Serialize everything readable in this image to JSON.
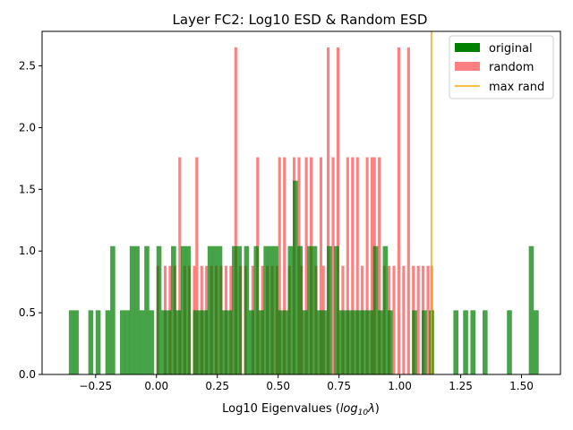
{
  "chart_data": {
    "type": "bar",
    "title": "Layer  FC2: Log10 ESD & Random ESD",
    "xlabel_prefix": "Log10 Eigenvalues (",
    "xlabel_math": "log",
    "xlabel_sub": "10",
    "xlabel_lambda": "λ",
    "xlabel_suffix": ")",
    "xlim": [
      -0.47,
      1.66
    ],
    "ylim": [
      0,
      2.78
    ],
    "xticks": [
      -0.25,
      0.0,
      0.25,
      0.5,
      0.75,
      1.0,
      1.25,
      1.5
    ],
    "xtick_labels": [
      "−0.25",
      "0.00",
      "0.25",
      "0.50",
      "0.75",
      "1.00",
      "1.25",
      "1.50"
    ],
    "yticks": [
      0.0,
      0.5,
      1.0,
      1.5,
      2.0,
      2.5
    ],
    "ytick_labels": [
      "0.0",
      "0.5",
      "1.0",
      "1.5",
      "2.0",
      "2.5"
    ],
    "grid": false,
    "legend_position": "top-right",
    "legend": [
      {
        "label": "original",
        "kind": "patch",
        "color": "#008000"
      },
      {
        "label": "random",
        "kind": "patch",
        "color": "#ff8080"
      },
      {
        "label": "max rand",
        "kind": "line",
        "color": "#ffa500"
      }
    ],
    "series": [
      {
        "name": "random",
        "color": "#ff8080",
        "opacity": 1.0,
        "bin_width": 0.0115,
        "bars": [
          [
            0.0,
            0.88
          ],
          [
            0.03,
            0.88
          ],
          [
            0.05,
            0.88
          ],
          [
            0.07,
            0.88
          ],
          [
            0.09,
            1.76
          ],
          [
            0.11,
            0.88
          ],
          [
            0.13,
            0.88
          ],
          [
            0.15,
            0.88
          ],
          [
            0.16,
            1.76
          ],
          [
            0.18,
            0.88
          ],
          [
            0.2,
            0.88
          ],
          [
            0.22,
            0.88
          ],
          [
            0.24,
            0.88
          ],
          [
            0.26,
            0.88
          ],
          [
            0.28,
            0.88
          ],
          [
            0.3,
            0.88
          ],
          [
            0.32,
            2.65
          ],
          [
            0.34,
            0.88
          ],
          [
            0.36,
            0.88
          ],
          [
            0.39,
            0.88
          ],
          [
            0.41,
            1.76
          ],
          [
            0.43,
            0.88
          ],
          [
            0.45,
            0.88
          ],
          [
            0.47,
            0.88
          ],
          [
            0.49,
            0.88
          ],
          [
            0.5,
            1.76
          ],
          [
            0.52,
            1.76
          ],
          [
            0.54,
            0.88
          ],
          [
            0.56,
            1.76
          ],
          [
            0.58,
            1.76
          ],
          [
            0.59,
            0.88
          ],
          [
            0.61,
            1.76
          ],
          [
            0.63,
            1.76
          ],
          [
            0.65,
            0.88
          ],
          [
            0.67,
            1.76
          ],
          [
            0.68,
            0.88
          ],
          [
            0.7,
            2.65
          ],
          [
            0.72,
            1.76
          ],
          [
            0.74,
            2.65
          ],
          [
            0.76,
            0.88
          ],
          [
            0.78,
            1.76
          ],
          [
            0.8,
            1.76
          ],
          [
            0.82,
            1.76
          ],
          [
            0.84,
            0.88
          ],
          [
            0.86,
            1.76
          ],
          [
            0.88,
            1.76
          ],
          [
            0.89,
            1.76
          ],
          [
            0.91,
            1.76
          ],
          [
            0.93,
            0.88
          ],
          [
            0.95,
            0.88
          ],
          [
            0.97,
            0.88
          ],
          [
            0.99,
            2.65
          ],
          [
            1.01,
            0.88
          ],
          [
            1.03,
            2.65
          ],
          [
            1.05,
            0.88
          ],
          [
            1.07,
            0.88
          ],
          [
            1.09,
            0.88
          ],
          [
            1.11,
            0.88
          ],
          [
            1.125,
            0.88
          ]
        ]
      },
      {
        "name": "original",
        "color": "#008000",
        "opacity": 0.72,
        "bin_width": 0.0206,
        "bars": [
          [
            -0.36,
            0.52
          ],
          [
            -0.34,
            0.52
          ],
          [
            -0.28,
            0.52
          ],
          [
            -0.25,
            0.52
          ],
          [
            -0.21,
            0.52
          ],
          [
            -0.19,
            1.04
          ],
          [
            -0.15,
            0.52
          ],
          [
            -0.13,
            0.52
          ],
          [
            -0.11,
            1.04
          ],
          [
            -0.09,
            1.04
          ],
          [
            -0.07,
            0.52
          ],
          [
            -0.05,
            1.04
          ],
          [
            -0.03,
            0.52
          ],
          [
            0.0,
            1.04
          ],
          [
            0.02,
            0.52
          ],
          [
            0.04,
            0.52
          ],
          [
            0.06,
            1.04
          ],
          [
            0.08,
            0.52
          ],
          [
            0.1,
            1.04
          ],
          [
            0.12,
            1.04
          ],
          [
            0.15,
            0.52
          ],
          [
            0.17,
            0.52
          ],
          [
            0.19,
            0.52
          ],
          [
            0.21,
            1.04
          ],
          [
            0.23,
            1.04
          ],
          [
            0.25,
            1.04
          ],
          [
            0.27,
            0.52
          ],
          [
            0.29,
            0.52
          ],
          [
            0.31,
            1.04
          ],
          [
            0.33,
            1.04
          ],
          [
            0.36,
            1.04
          ],
          [
            0.38,
            0.52
          ],
          [
            0.4,
            1.04
          ],
          [
            0.42,
            0.52
          ],
          [
            0.44,
            1.04
          ],
          [
            0.46,
            1.04
          ],
          [
            0.48,
            1.04
          ],
          [
            0.5,
            0.52
          ],
          [
            0.52,
            0.52
          ],
          [
            0.54,
            1.04
          ],
          [
            0.56,
            1.57
          ],
          [
            0.58,
            1.04
          ],
          [
            0.6,
            0.52
          ],
          [
            0.62,
            1.04
          ],
          [
            0.64,
            1.04
          ],
          [
            0.66,
            0.52
          ],
          [
            0.68,
            0.52
          ],
          [
            0.7,
            1.04
          ],
          [
            0.73,
            1.04
          ],
          [
            0.75,
            0.52
          ],
          [
            0.77,
            0.52
          ],
          [
            0.79,
            0.52
          ],
          [
            0.81,
            0.52
          ],
          [
            0.83,
            0.52
          ],
          [
            0.85,
            0.52
          ],
          [
            0.87,
            0.52
          ],
          [
            0.89,
            1.04
          ],
          [
            0.91,
            0.52
          ],
          [
            0.93,
            1.04
          ],
          [
            0.95,
            0.52
          ],
          [
            1.05,
            0.52
          ],
          [
            1.09,
            0.52
          ],
          [
            1.12,
            0.52
          ],
          [
            1.22,
            0.52
          ],
          [
            1.26,
            0.52
          ],
          [
            1.29,
            0.52
          ],
          [
            1.34,
            0.52
          ],
          [
            1.44,
            0.52
          ],
          [
            1.53,
            1.04
          ],
          [
            1.55,
            0.52
          ]
        ]
      }
    ],
    "vline": {
      "name": "max rand",
      "x": 1.13,
      "color": "#ffa500"
    }
  }
}
